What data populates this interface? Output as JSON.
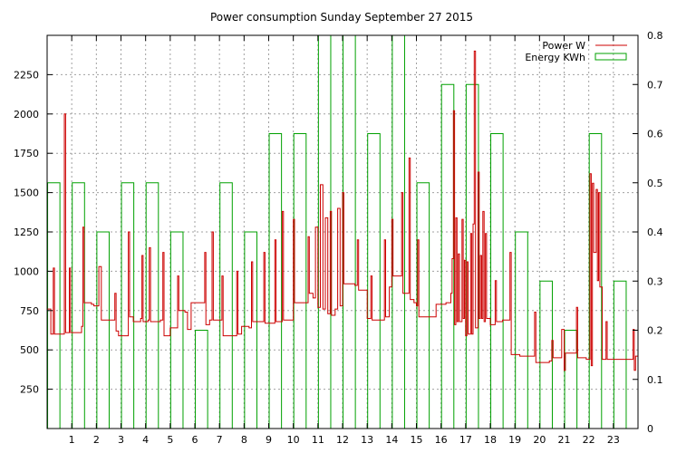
{
  "chart_data": {
    "type": "line",
    "title": "Power consumption Sunday September 27 2015",
    "grid": true,
    "legend_position": "top-right",
    "colors": {
      "power": "#cc0000",
      "energy": "#00a000",
      "grid": "#a0a0a0",
      "axis": "#000000"
    },
    "x_axis": {
      "range": [
        0,
        24
      ],
      "ticks": [
        1,
        2,
        3,
        4,
        5,
        6,
        7,
        8,
        9,
        10,
        11,
        12,
        13,
        14,
        15,
        16,
        17,
        18,
        19,
        20,
        21,
        22,
        23
      ]
    },
    "y_axis_left": {
      "range": [
        0,
        2500
      ],
      "ticks": [
        250,
        500,
        750,
        1000,
        1250,
        1500,
        1750,
        2000,
        2250
      ]
    },
    "y_axis_right": {
      "range": [
        0,
        0.8
      ],
      "ticks": [
        "0",
        "0.1",
        "0.2",
        "0.3",
        "0.4",
        "0.5",
        "0.6",
        "0.7",
        "0.8"
      ]
    },
    "series": [
      {
        "name": "Power W",
        "axis": "left",
        "style": "line",
        "points": [
          [
            0.0,
            760
          ],
          [
            0.15,
            600
          ],
          [
            0.25,
            1020
          ],
          [
            0.3,
            600
          ],
          [
            0.6,
            600
          ],
          [
            0.7,
            2000
          ],
          [
            0.75,
            610
          ],
          [
            0.9,
            1020
          ],
          [
            0.95,
            610
          ],
          [
            1.4,
            650
          ],
          [
            1.45,
            1280
          ],
          [
            1.5,
            800
          ],
          [
            1.8,
            790
          ],
          [
            1.9,
            780
          ],
          [
            2.1,
            1030
          ],
          [
            2.2,
            690
          ],
          [
            2.7,
            690
          ],
          [
            2.75,
            860
          ],
          [
            2.8,
            620
          ],
          [
            2.9,
            590
          ],
          [
            3.2,
            590
          ],
          [
            3.3,
            1250
          ],
          [
            3.35,
            710
          ],
          [
            3.5,
            680
          ],
          [
            3.8,
            700
          ],
          [
            3.85,
            1100
          ],
          [
            3.9,
            680
          ],
          [
            4.1,
            690
          ],
          [
            4.15,
            1150
          ],
          [
            4.2,
            680
          ],
          [
            4.6,
            690
          ],
          [
            4.7,
            1120
          ],
          [
            4.75,
            590
          ],
          [
            4.9,
            590
          ],
          [
            5.0,
            640
          ],
          [
            5.2,
            640
          ],
          [
            5.3,
            970
          ],
          [
            5.35,
            750
          ],
          [
            5.6,
            740
          ],
          [
            5.7,
            630
          ],
          [
            5.85,
            800
          ],
          [
            6.3,
            800
          ],
          [
            6.4,
            1120
          ],
          [
            6.45,
            660
          ],
          [
            6.6,
            690
          ],
          [
            6.7,
            1250
          ],
          [
            6.75,
            690
          ],
          [
            7.0,
            690
          ],
          [
            7.1,
            970
          ],
          [
            7.15,
            590
          ],
          [
            7.6,
            590
          ],
          [
            7.7,
            1000
          ],
          [
            7.75,
            600
          ],
          [
            7.9,
            650
          ],
          [
            8.2,
            640
          ],
          [
            8.3,
            1060
          ],
          [
            8.35,
            680
          ],
          [
            8.7,
            680
          ],
          [
            8.8,
            1120
          ],
          [
            8.85,
            670
          ],
          [
            9.2,
            670
          ],
          [
            9.25,
            1200
          ],
          [
            9.3,
            680
          ],
          [
            9.5,
            680
          ],
          [
            9.55,
            1380
          ],
          [
            9.6,
            690
          ],
          [
            9.9,
            690
          ],
          [
            10.0,
            1330
          ],
          [
            10.05,
            800
          ],
          [
            10.4,
            800
          ],
          [
            10.6,
            1220
          ],
          [
            10.65,
            860
          ],
          [
            10.8,
            830
          ],
          [
            10.9,
            1280
          ],
          [
            11.0,
            770
          ],
          [
            11.1,
            1550
          ],
          [
            11.2,
            760
          ],
          [
            11.3,
            1340
          ],
          [
            11.4,
            730
          ],
          [
            11.5,
            1380
          ],
          [
            11.55,
            720
          ],
          [
            11.7,
            760
          ],
          [
            11.8,
            1400
          ],
          [
            11.9,
            780
          ],
          [
            12.0,
            1500
          ],
          [
            12.05,
            920
          ],
          [
            12.3,
            920
          ],
          [
            12.5,
            910
          ],
          [
            12.6,
            1200
          ],
          [
            12.65,
            880
          ],
          [
            12.9,
            880
          ],
          [
            13.0,
            700
          ],
          [
            13.15,
            970
          ],
          [
            13.2,
            690
          ],
          [
            13.6,
            690
          ],
          [
            13.7,
            1200
          ],
          [
            13.75,
            710
          ],
          [
            13.9,
            900
          ],
          [
            14.0,
            1330
          ],
          [
            14.05,
            970
          ],
          [
            14.3,
            970
          ],
          [
            14.4,
            1500
          ],
          [
            14.45,
            860
          ],
          [
            14.6,
            860
          ],
          [
            14.7,
            1720
          ],
          [
            14.75,
            820
          ],
          [
            14.9,
            800
          ],
          [
            15.0,
            780
          ],
          [
            15.05,
            1200
          ],
          [
            15.1,
            710
          ],
          [
            15.7,
            710
          ],
          [
            15.8,
            790
          ],
          [
            16.2,
            800
          ],
          [
            16.4,
            860
          ],
          [
            16.45,
            1080
          ],
          [
            16.5,
            2020
          ],
          [
            16.55,
            660
          ],
          [
            16.6,
            1340
          ],
          [
            16.65,
            680
          ],
          [
            16.7,
            1110
          ],
          [
            16.75,
            680
          ],
          [
            16.85,
            1330
          ],
          [
            16.9,
            700
          ],
          [
            16.95,
            1070
          ],
          [
            17.0,
            590
          ],
          [
            17.05,
            1060
          ],
          [
            17.1,
            600
          ],
          [
            17.2,
            1240
          ],
          [
            17.25,
            600
          ],
          [
            17.3,
            1300
          ],
          [
            17.35,
            2400
          ],
          [
            17.4,
            640
          ],
          [
            17.5,
            1630
          ],
          [
            17.55,
            700
          ],
          [
            17.6,
            1100
          ],
          [
            17.65,
            700
          ],
          [
            17.7,
            1380
          ],
          [
            17.75,
            680
          ],
          [
            17.8,
            1240
          ],
          [
            17.85,
            700
          ],
          [
            18.0,
            660
          ],
          [
            18.2,
            940
          ],
          [
            18.25,
            680
          ],
          [
            18.5,
            690
          ],
          [
            18.7,
            690
          ],
          [
            18.8,
            1120
          ],
          [
            18.85,
            470
          ],
          [
            19.2,
            460
          ],
          [
            19.7,
            460
          ],
          [
            19.8,
            740
          ],
          [
            19.85,
            420
          ],
          [
            20.4,
            430
          ],
          [
            20.5,
            560
          ],
          [
            20.55,
            450
          ],
          [
            20.8,
            450
          ],
          [
            20.9,
            630
          ],
          [
            21.0,
            370
          ],
          [
            21.05,
            480
          ],
          [
            21.4,
            480
          ],
          [
            21.5,
            770
          ],
          [
            21.55,
            450
          ],
          [
            21.9,
            440
          ],
          [
            22.05,
            1620
          ],
          [
            22.1,
            400
          ],
          [
            22.15,
            1560
          ],
          [
            22.2,
            1120
          ],
          [
            22.3,
            1520
          ],
          [
            22.35,
            940
          ],
          [
            22.4,
            1500
          ],
          [
            22.45,
            900
          ],
          [
            22.55,
            440
          ],
          [
            22.7,
            680
          ],
          [
            22.75,
            440
          ],
          [
            23.2,
            440
          ],
          [
            23.7,
            440
          ],
          [
            23.8,
            630
          ],
          [
            23.85,
            370
          ],
          [
            23.9,
            460
          ],
          [
            24.0,
            460
          ]
        ]
      },
      {
        "name": "Energy KWh",
        "axis": "right",
        "style": "bars",
        "values": [
          0.5,
          0.5,
          0.4,
          0.5,
          0.5,
          0.4,
          0.2,
          0.5,
          0.4,
          0.6,
          0.6,
          0.8,
          0.8,
          0.6,
          0.8,
          0.5,
          0.7,
          0.7,
          0.6,
          0.4,
          0.3,
          0.2,
          0.6,
          0.3
        ]
      }
    ]
  }
}
